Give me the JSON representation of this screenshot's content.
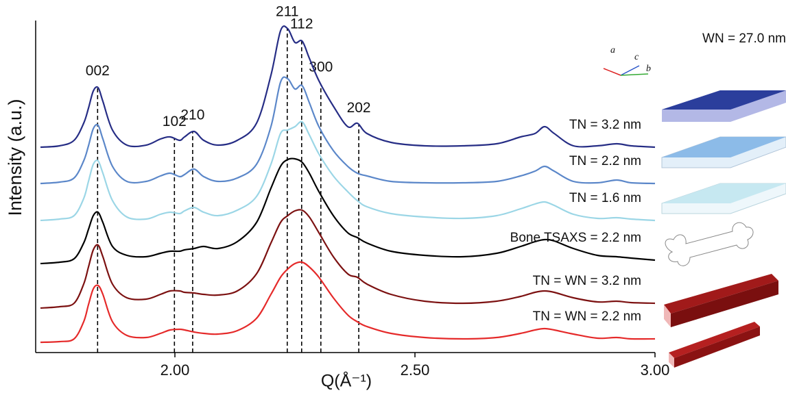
{
  "chart_data": {
    "type": "line",
    "x_label": "Q(Å⁻¹)",
    "y_label": "Intensity (a.u.)",
    "xlim": [
      1.71,
      3.0
    ],
    "ylim": [
      0,
      485
    ],
    "xticks": [
      {
        "value": 2.0,
        "label": "2.00"
      },
      {
        "value": 2.5,
        "label": "2.50"
      },
      {
        "value": 3.0,
        "label": "3.00"
      }
    ],
    "x": [
      1.72,
      1.76,
      1.79,
      1.81,
      1.82,
      1.83,
      1.84,
      1.85,
      1.87,
      1.9,
      1.94,
      1.97,
      1.99,
      2.01,
      2.02,
      2.04,
      2.06,
      2.09,
      2.13,
      2.17,
      2.2,
      2.22,
      2.235,
      2.25,
      2.265,
      2.28,
      2.3,
      2.33,
      2.36,
      2.38,
      2.4,
      2.45,
      2.52,
      2.6,
      2.67,
      2.72,
      2.75,
      2.77,
      2.79,
      2.83,
      2.88,
      2.92,
      2.95,
      3.0
    ],
    "series": [
      {
        "name": "TN = 3.2 nm",
        "color": "#262d85",
        "values": [
          300,
          302,
          310,
          335,
          357,
          382,
          387,
          367,
          325,
          303,
          303,
          312,
          315,
          310,
          315,
          323,
          310,
          303,
          310,
          335,
          405,
          470,
          473,
          453,
          455,
          430,
          397,
          360,
          330,
          335,
          320,
          307,
          302,
          302,
          305,
          315,
          320,
          330,
          320,
          302,
          302,
          305,
          302,
          300
        ]
      },
      {
        "name": "TN = 2.2 nm",
        "color": "#5b87c9",
        "values": [
          247,
          249,
          255,
          280,
          302,
          327,
          332,
          312,
          272,
          250,
          250,
          258,
          262,
          257,
          260,
          268,
          257,
          250,
          255,
          275,
          330,
          395,
          400,
          385,
          390,
          365,
          330,
          295,
          272,
          262,
          258,
          250,
          248,
          248,
          250,
          258,
          265,
          272,
          265,
          250,
          248,
          252,
          248,
          247
        ]
      },
      {
        "name": "TN = 1.6 nm",
        "color": "#9bd6e6",
        "values": [
          193,
          195,
          200,
          225,
          250,
          275,
          280,
          262,
          222,
          198,
          195,
          202,
          205,
          203,
          207,
          212,
          205,
          200,
          208,
          228,
          275,
          320,
          325,
          330,
          337,
          318,
          290,
          258,
          235,
          222,
          213,
          203,
          198,
          196,
          200,
          210,
          217,
          220,
          215,
          202,
          196,
          197,
          195,
          193
        ]
      },
      {
        "name": "Bone TSAXS = 2.2 nm",
        "color": "#000000",
        "values": [
          130,
          132,
          137,
          160,
          180,
          200,
          205,
          190,
          155,
          142,
          140,
          145,
          148,
          148,
          150,
          152,
          155,
          152,
          162,
          190,
          240,
          272,
          282,
          283,
          278,
          262,
          235,
          200,
          175,
          168,
          160,
          148,
          142,
          140,
          145,
          155,
          162,
          165,
          163,
          152,
          142,
          140,
          138,
          135
        ]
      },
      {
        "name": "TN = WN = 3.2 nm",
        "color": "#7c1111",
        "values": [
          65,
          67,
          72,
          100,
          125,
          150,
          157,
          140,
          100,
          80,
          78,
          85,
          90,
          90,
          88,
          87,
          85,
          84,
          90,
          115,
          160,
          190,
          200,
          207,
          208,
          198,
          175,
          140,
          115,
          110,
          100,
          85,
          75,
          72,
          75,
          82,
          88,
          90,
          88,
          80,
          74,
          75,
          73,
          72
        ]
      },
      {
        "name": "TN = WN = 2.2 nm",
        "color": "#e52a2a",
        "values": [
          15,
          16,
          20,
          45,
          70,
          93,
          98,
          85,
          45,
          25,
          22,
          28,
          33,
          34,
          33,
          30,
          28,
          27,
          32,
          50,
          85,
          110,
          122,
          130,
          132,
          125,
          110,
          80,
          55,
          45,
          38,
          28,
          22,
          20,
          22,
          28,
          33,
          35,
          33,
          27,
          21,
          22,
          20,
          20
        ]
      }
    ],
    "peaks": [
      {
        "label": "002",
        "x": 1.839
      },
      {
        "label": "102",
        "x": 1.999
      },
      {
        "label": "210",
        "x": 2.037
      },
      {
        "label": "211",
        "x": 2.234
      },
      {
        "label": "112",
        "x": 2.264
      },
      {
        "label": "300",
        "x": 2.304
      },
      {
        "label": "202",
        "x": 2.383
      }
    ],
    "side_label": "WN = 27.0 nm",
    "axes_labels": [
      "a",
      "c",
      "b"
    ]
  }
}
